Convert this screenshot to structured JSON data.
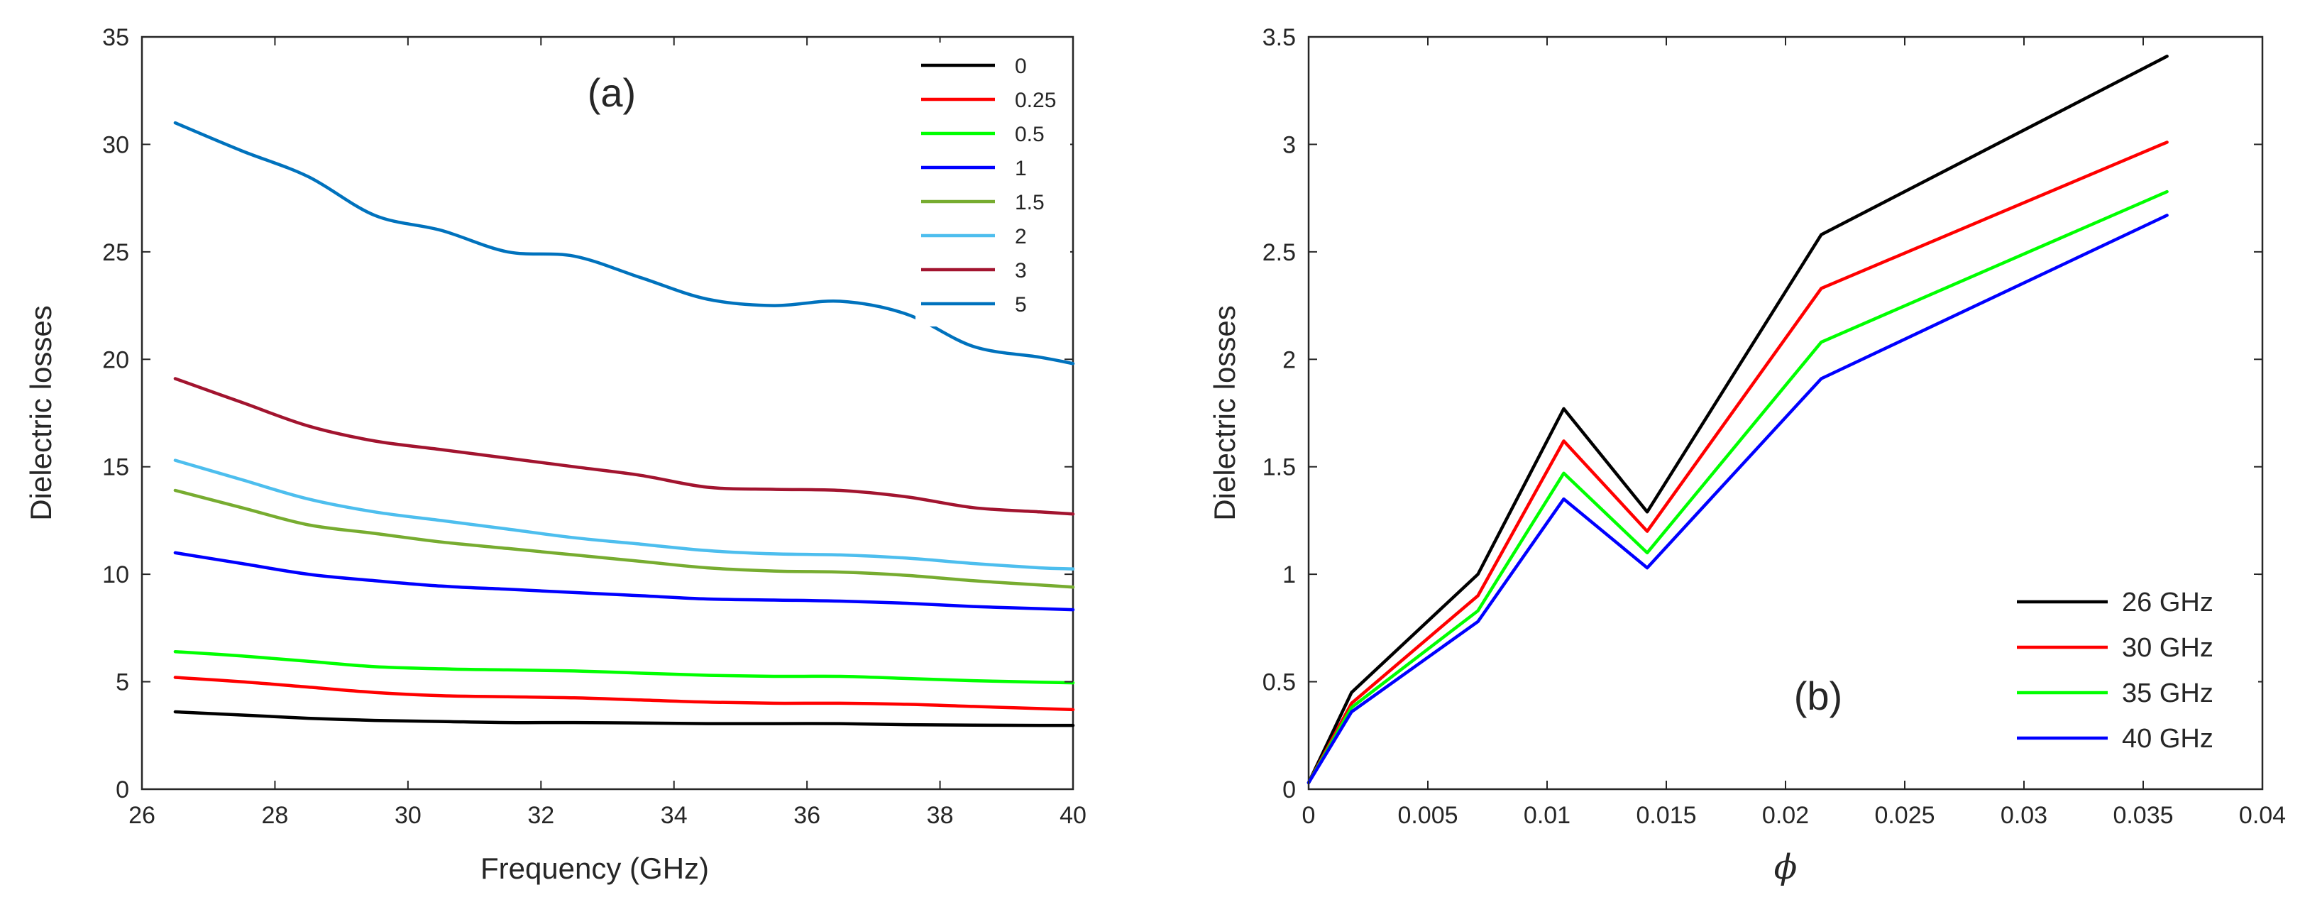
{
  "chart_data": [
    {
      "type": "line",
      "panel_label": "(a)",
      "title": "",
      "xlabel": "Frequency (GHz)",
      "ylabel": "Dielectric  losses",
      "xlim": [
        26,
        40
      ],
      "ylim": [
        0,
        35
      ],
      "xticks": [
        26,
        28,
        30,
        32,
        34,
        36,
        38,
        40
      ],
      "yticks": [
        0,
        5,
        10,
        15,
        20,
        25,
        30,
        35
      ],
      "legend_position": "top-right",
      "grid": false,
      "x": [
        26.5,
        27.5,
        28.5,
        29.5,
        30.5,
        31.5,
        32.5,
        33.5,
        34.5,
        35.5,
        36.5,
        37.5,
        38.5,
        39.5,
        40
      ],
      "series": [
        {
          "name": "0",
          "color": "#000000",
          "values": [
            3.6,
            3.45,
            3.3,
            3.2,
            3.15,
            3.1,
            3.1,
            3.08,
            3.05,
            3.05,
            3.05,
            3.0,
            2.98,
            2.97,
            2.97
          ]
        },
        {
          "name": "0.25",
          "color": "#ff0000",
          "values": [
            5.2,
            5.0,
            4.75,
            4.5,
            4.35,
            4.3,
            4.25,
            4.15,
            4.05,
            4.0,
            4.0,
            3.95,
            3.85,
            3.75,
            3.7
          ]
        },
        {
          "name": "0.5",
          "color": "#00ff00",
          "values": [
            6.4,
            6.2,
            5.95,
            5.7,
            5.6,
            5.55,
            5.5,
            5.4,
            5.3,
            5.25,
            5.25,
            5.15,
            5.05,
            4.98,
            4.95
          ]
        },
        {
          "name": "1",
          "color": "#0000ff",
          "values": [
            11.0,
            10.5,
            10.0,
            9.7,
            9.45,
            9.3,
            9.15,
            9.0,
            8.85,
            8.8,
            8.75,
            8.65,
            8.5,
            8.4,
            8.35
          ]
        },
        {
          "name": "1.5",
          "color": "#77ac30",
          "values": [
            13.9,
            13.1,
            12.3,
            11.9,
            11.5,
            11.2,
            10.9,
            10.6,
            10.3,
            10.15,
            10.1,
            9.95,
            9.7,
            9.5,
            9.4
          ]
        },
        {
          "name": "2",
          "color": "#4dbeee",
          "values": [
            15.3,
            14.4,
            13.5,
            12.9,
            12.5,
            12.1,
            11.7,
            11.4,
            11.1,
            10.95,
            10.9,
            10.75,
            10.5,
            10.3,
            10.25
          ]
        },
        {
          "name": "3",
          "color": "#a2142f",
          "values": [
            19.1,
            18.0,
            16.9,
            16.2,
            15.8,
            15.4,
            15.0,
            14.6,
            14.05,
            13.95,
            13.9,
            13.6,
            13.1,
            12.9,
            12.8
          ]
        },
        {
          "name": "5",
          "color": "#0072bd",
          "values": [
            31.0,
            29.7,
            28.5,
            26.7,
            26.0,
            25.0,
            24.8,
            23.8,
            22.8,
            22.5,
            22.7,
            22.1,
            20.6,
            20.1,
            19.8
          ]
        }
      ]
    },
    {
      "type": "line",
      "panel_label": "(b)",
      "title": "",
      "xlabel": "ϕ",
      "ylabel": "Dielectric losses",
      "xlim": [
        0,
        0.04
      ],
      "ylim": [
        0,
        3.5
      ],
      "xticks": [
        0,
        0.005,
        0.01,
        0.015,
        0.02,
        0.025,
        0.03,
        0.035,
        0.04
      ],
      "xtick_labels": [
        "0",
        "0.005",
        "0.01",
        "0.015",
        "0.02",
        "0.025",
        "0.03",
        "0.035",
        "0.04"
      ],
      "yticks": [
        0,
        0.5,
        1,
        1.5,
        2,
        2.5,
        3,
        3.5
      ],
      "ytick_labels": [
        "0",
        "0.5",
        "1",
        "1.5",
        "2",
        "2.5",
        "3",
        "3.5"
      ],
      "legend_position": "bottom-right",
      "grid": false,
      "x": [
        0,
        0.0018,
        0.0071,
        0.0107,
        0.0142,
        0.0215,
        0.036
      ],
      "series": [
        {
          "name": "26 GHz",
          "color": "#000000",
          "values": [
            0.03,
            0.45,
            1.0,
            1.77,
            1.29,
            2.58,
            3.41
          ]
        },
        {
          "name": "30 GHz",
          "color": "#ff0000",
          "values": [
            0.03,
            0.4,
            0.9,
            1.62,
            1.2,
            2.33,
            3.01
          ]
        },
        {
          "name": "35 GHz",
          "color": "#00ff00",
          "values": [
            0.03,
            0.38,
            0.83,
            1.47,
            1.1,
            2.08,
            2.78
          ]
        },
        {
          "name": "40 GHz",
          "color": "#0000ff",
          "values": [
            0.03,
            0.36,
            0.78,
            1.35,
            1.03,
            1.91,
            2.67
          ]
        }
      ]
    }
  ]
}
